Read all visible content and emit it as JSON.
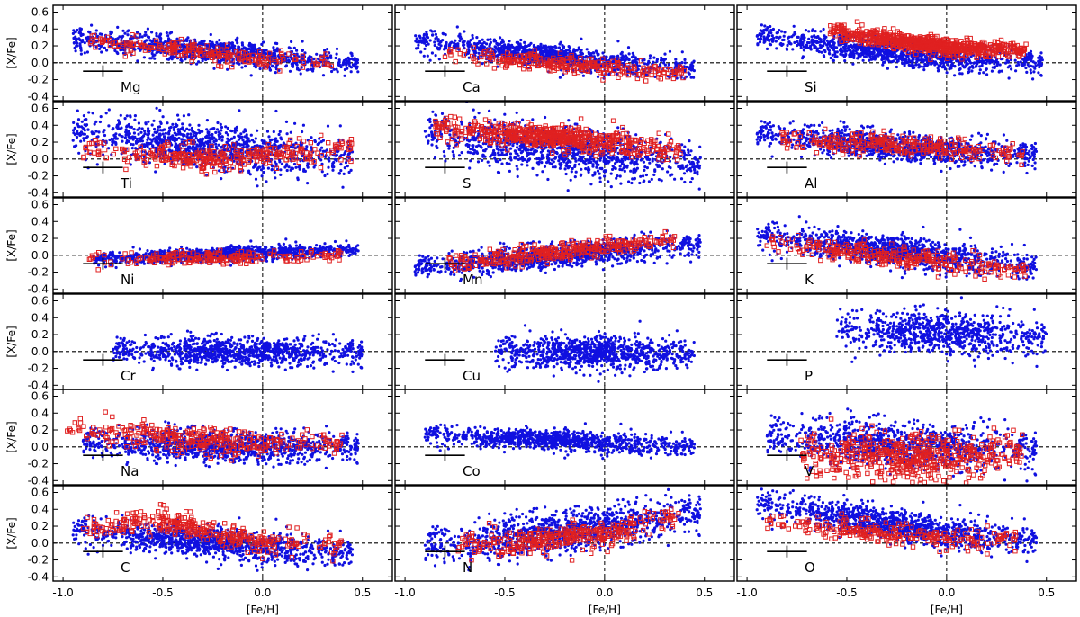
{
  "figure": {
    "x_axis_label": "[Fe/H]",
    "y_axis_label": "[X/Fe]",
    "x_ticks": [
      "-1.0",
      "-0.5",
      "0.0",
      "0.5"
    ],
    "y_ticks": [
      "0.6",
      "0.4",
      "0.2",
      "0.0",
      "-0.2",
      "-0.4"
    ],
    "colors": {
      "dwarfs": "#1010e0",
      "giants": "#e02020",
      "frame": "#000000"
    }
  },
  "chart_data": {
    "type": "scatter",
    "layout": "6x3 grid of scatter panels sharing axes",
    "xlabel": "[Fe/H]",
    "ylabel": "[X/Fe]",
    "xlim": [
      -1.05,
      0.65
    ],
    "ylim": [
      -0.45,
      0.68
    ],
    "x_ticks": [
      -1.0,
      -0.5,
      0.0,
      0.5
    ],
    "y_ticks": [
      0.6,
      0.4,
      0.2,
      0.0,
      -0.2,
      -0.4
    ],
    "reference_lines": {
      "x": 0.0,
      "y": 0.0
    },
    "series_styles": [
      {
        "name": "blue points",
        "marker": "filled circle",
        "color": "#1010e0"
      },
      {
        "name": "red points",
        "marker": "open square",
        "color": "#e02020"
      }
    ],
    "error_bar": {
      "x": -0.8,
      "y": -0.1,
      "xerr": 0.1,
      "yerr": 0.07
    },
    "panels": [
      {
        "element": "Mg",
        "blue": {
          "x_range": [
            -0.95,
            0.48
          ],
          "y_at": [
            [
              -0.9,
              0.28
            ],
            [
              0.0,
              0.08
            ],
            [
              0.45,
              0.0
            ]
          ],
          "spread": 0.07,
          "n": 1100
        },
        "red": {
          "x_range": [
            -0.9,
            0.35
          ],
          "y_at": [
            [
              -0.9,
              0.28
            ],
            [
              0.0,
              0.03
            ],
            [
              0.35,
              0.02
            ]
          ],
          "spread": 0.05,
          "n": 220
        }
      },
      {
        "element": "Ca",
        "blue": {
          "x_range": [
            -0.95,
            0.45
          ],
          "y_at": [
            [
              -0.9,
              0.25
            ],
            [
              0.0,
              0.0
            ],
            [
              0.45,
              -0.08
            ]
          ],
          "spread": 0.07,
          "n": 1100
        },
        "red": {
          "x_range": [
            -0.8,
            0.4
          ],
          "y_at": [
            [
              -0.8,
              0.1
            ],
            [
              0.0,
              -0.05
            ],
            [
              0.4,
              -0.12
            ]
          ],
          "spread": 0.05,
          "n": 260
        }
      },
      {
        "element": "Si",
        "blue": {
          "x_range": [
            -0.95,
            0.48
          ],
          "y_at": [
            [
              -0.9,
              0.3
            ],
            [
              0.0,
              0.04
            ],
            [
              0.45,
              0.0
            ]
          ],
          "spread": 0.07,
          "n": 1100
        },
        "red": {
          "x_range": [
            -0.6,
            0.4
          ],
          "y_at": [
            [
              -0.6,
              0.38
            ],
            [
              0.0,
              0.18
            ],
            [
              0.4,
              0.15
            ]
          ],
          "spread": 0.05,
          "n": 700
        }
      },
      {
        "element": "Ti",
        "blue": {
          "x_range": [
            -0.95,
            0.45
          ],
          "y_at": [
            [
              -0.9,
              0.3
            ],
            [
              0.0,
              0.08
            ],
            [
              0.45,
              0.02
            ]
          ],
          "spread": 0.13,
          "n": 1100
        },
        "red": {
          "x_range": [
            -0.9,
            0.45
          ],
          "y_at": [
            [
              -0.9,
              0.1
            ],
            [
              -0.2,
              0.0
            ],
            [
              0.45,
              0.12
            ]
          ],
          "spread": 0.07,
          "n": 320
        }
      },
      {
        "element": "S",
        "blue": {
          "x_range": [
            -0.9,
            0.48
          ],
          "y_at": [
            [
              -0.9,
              0.3
            ],
            [
              0.0,
              0.05
            ],
            [
              0.45,
              -0.05
            ]
          ],
          "spread": 0.14,
          "n": 1100
        },
        "red": {
          "x_range": [
            -0.85,
            0.38
          ],
          "y_at": [
            [
              -0.85,
              0.38
            ],
            [
              0.0,
              0.2
            ],
            [
              0.38,
              0.08
            ]
          ],
          "spread": 0.07,
          "n": 560
        }
      },
      {
        "element": "Al",
        "blue": {
          "x_range": [
            -0.95,
            0.45
          ],
          "y_at": [
            [
              -0.9,
              0.28
            ],
            [
              0.0,
              0.1
            ],
            [
              0.45,
              0.05
            ]
          ],
          "spread": 0.08,
          "n": 1100
        },
        "red": {
          "x_range": [
            -0.85,
            0.38
          ],
          "y_at": [
            [
              -0.85,
              0.25
            ],
            [
              0.0,
              0.14
            ],
            [
              0.38,
              0.06
            ]
          ],
          "spread": 0.06,
          "n": 280
        }
      },
      {
        "element": "Ni",
        "blue": {
          "x_range": [
            -0.85,
            0.48
          ],
          "y_at": [
            [
              -0.85,
              -0.05
            ],
            [
              0.0,
              0.03
            ],
            [
              0.45,
              0.06
            ]
          ],
          "spread": 0.04,
          "n": 1100
        },
        "red": {
          "x_range": [
            -0.9,
            0.4
          ],
          "y_at": [
            [
              -0.9,
              -0.05
            ],
            [
              0.0,
              -0.02
            ],
            [
              0.4,
              0.0
            ]
          ],
          "spread": 0.04,
          "n": 200
        }
      },
      {
        "element": "Mn",
        "blue": {
          "x_range": [
            -0.95,
            0.48
          ],
          "y_at": [
            [
              -0.9,
              -0.15
            ],
            [
              0.0,
              0.05
            ],
            [
              0.45,
              0.12
            ]
          ],
          "spread": 0.07,
          "n": 1100
        },
        "red": {
          "x_range": [
            -0.8,
            0.35
          ],
          "y_at": [
            [
              -0.8,
              -0.1
            ],
            [
              0.0,
              0.1
            ],
            [
              0.35,
              0.2
            ]
          ],
          "spread": 0.05,
          "n": 320
        }
      },
      {
        "element": "K",
        "blue": {
          "x_range": [
            -0.95,
            0.45
          ],
          "y_at": [
            [
              -0.9,
              0.22
            ],
            [
              0.0,
              -0.02
            ],
            [
              0.45,
              -0.15
            ]
          ],
          "spread": 0.09,
          "n": 1100
        },
        "red": {
          "x_range": [
            -0.9,
            0.4
          ],
          "y_at": [
            [
              -0.9,
              0.15
            ],
            [
              0.0,
              -0.08
            ],
            [
              0.4,
              -0.18
            ]
          ],
          "spread": 0.06,
          "n": 280
        }
      },
      {
        "element": "Cr",
        "blue": {
          "x_range": [
            -0.75,
            0.5
          ],
          "y_at": [
            [
              -0.75,
              0.0
            ],
            [
              0.0,
              0.0
            ],
            [
              0.5,
              -0.02
            ]
          ],
          "spread": 0.08,
          "n": 1000
        },
        "red": null
      },
      {
        "element": "Cu",
        "blue": {
          "x_range": [
            -0.55,
            0.45
          ],
          "y_at": [
            [
              -0.55,
              0.0
            ],
            [
              0.0,
              -0.02
            ],
            [
              0.45,
              -0.03
            ]
          ],
          "spread": 0.1,
          "n": 900
        },
        "red": null
      },
      {
        "element": "P",
        "blue": {
          "x_range": [
            -0.55,
            0.5
          ],
          "y_at": [
            [
              -0.55,
              0.25
            ],
            [
              0.0,
              0.22
            ],
            [
              0.5,
              0.15
            ]
          ],
          "spread": 0.12,
          "n": 800
        },
        "red": null
      },
      {
        "element": "Na",
        "blue": {
          "x_range": [
            -0.9,
            0.48
          ],
          "y_at": [
            [
              -0.9,
              0.05
            ],
            [
              0.0,
              0.0
            ],
            [
              0.45,
              0.0
            ]
          ],
          "spread": 0.09,
          "n": 1100
        },
        "red": {
          "x_range": [
            -1.0,
            0.4
          ],
          "y_at": [
            [
              -1.0,
              0.2
            ],
            [
              0.0,
              0.02
            ],
            [
              0.4,
              0.03
            ]
          ],
          "spread": 0.08,
          "n": 300
        }
      },
      {
        "element": "Co",
        "blue": {
          "x_range": [
            -0.9,
            0.45
          ],
          "y_at": [
            [
              -0.9,
              0.15
            ],
            [
              0.0,
              0.05
            ],
            [
              0.45,
              0.0
            ]
          ],
          "spread": 0.06,
          "n": 1000
        },
        "red": null
      },
      {
        "element": "V",
        "blue": {
          "x_range": [
            -0.9,
            0.45
          ],
          "y_at": [
            [
              -0.9,
              0.1
            ],
            [
              0.0,
              0.0
            ],
            [
              0.45,
              -0.05
            ]
          ],
          "spread": 0.13,
          "n": 1000
        },
        "red": {
          "x_range": [
            -0.75,
            0.38
          ],
          "y_at": [
            [
              -0.75,
              -0.1
            ],
            [
              0.0,
              -0.15
            ],
            [
              0.38,
              -0.05
            ]
          ],
          "spread": 0.14,
          "n": 500
        }
      },
      {
        "element": "C",
        "blue": {
          "x_range": [
            -0.95,
            0.45
          ],
          "y_at": [
            [
              -0.9,
              0.15
            ],
            [
              0.0,
              -0.05
            ],
            [
              0.45,
              -0.12
            ]
          ],
          "spread": 0.09,
          "n": 1100
        },
        "red": {
          "x_range": [
            -0.9,
            0.4
          ],
          "y_at": [
            [
              -0.9,
              0.15
            ],
            [
              -0.5,
              0.25
            ],
            [
              0.0,
              0.0
            ],
            [
              0.4,
              -0.02
            ]
          ],
          "spread": 0.07,
          "n": 320
        }
      },
      {
        "element": "N",
        "blue": {
          "x_range": [
            -0.9,
            0.48
          ],
          "y_at": [
            [
              -0.9,
              -0.05
            ],
            [
              0.0,
              0.2
            ],
            [
              0.45,
              0.35
            ]
          ],
          "spread": 0.12,
          "n": 1100
        },
        "red": {
          "x_range": [
            -0.75,
            0.38
          ],
          "y_at": [
            [
              -0.75,
              -0.05
            ],
            [
              0.0,
              0.1
            ],
            [
              0.38,
              0.35
            ]
          ],
          "spread": 0.08,
          "n": 320
        }
      },
      {
        "element": "O",
        "blue": {
          "x_range": [
            -0.95,
            0.45
          ],
          "y_at": [
            [
              -0.9,
              0.45
            ],
            [
              0.0,
              0.12
            ],
            [
              0.45,
              0.02
            ]
          ],
          "spread": 0.09,
          "n": 1100
        },
        "red": {
          "x_range": [
            -0.9,
            0.35
          ],
          "y_at": [
            [
              -0.9,
              0.25
            ],
            [
              0.0,
              0.05
            ],
            [
              0.35,
              0.03
            ]
          ],
          "spread": 0.06,
          "n": 240
        }
      }
    ]
  }
}
